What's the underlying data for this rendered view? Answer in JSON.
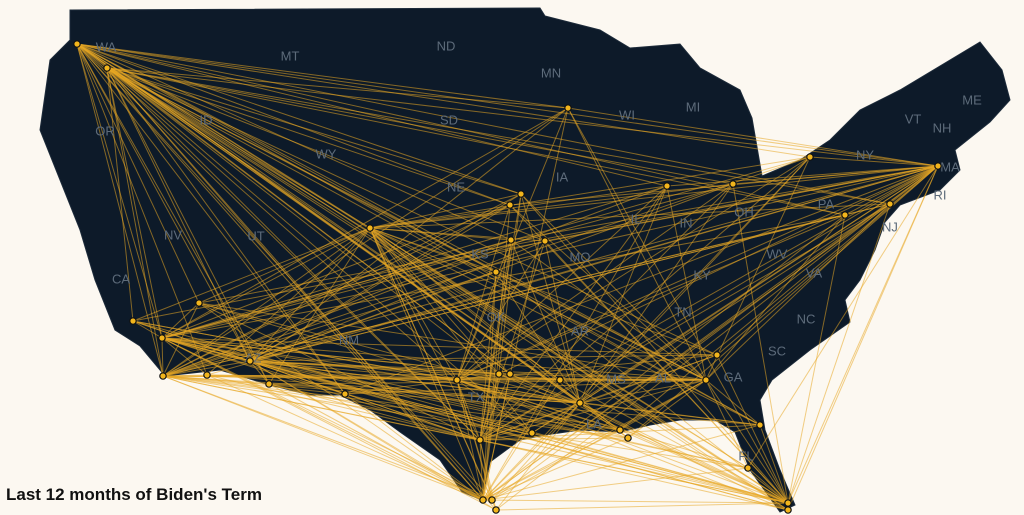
{
  "caption": "Last 12 months of Biden's Term",
  "state_labels": [
    "WA",
    "MT",
    "ND",
    "MN",
    "OR",
    "ID",
    "SD",
    "WI",
    "MI",
    "WY",
    "NY",
    "VT",
    "NH",
    "ME",
    "MA",
    "NE",
    "IA",
    "RI",
    "NV",
    "UT",
    "KS",
    "MO",
    "IL",
    "IN",
    "OH",
    "PA",
    "NJ",
    "CA",
    "WV",
    "VA",
    "KY",
    "OK",
    "AR",
    "TN",
    "NC",
    "NM",
    "SC",
    "GA",
    "AZ",
    "MS",
    "AL",
    "TX",
    "LA",
    "FL"
  ]
}
